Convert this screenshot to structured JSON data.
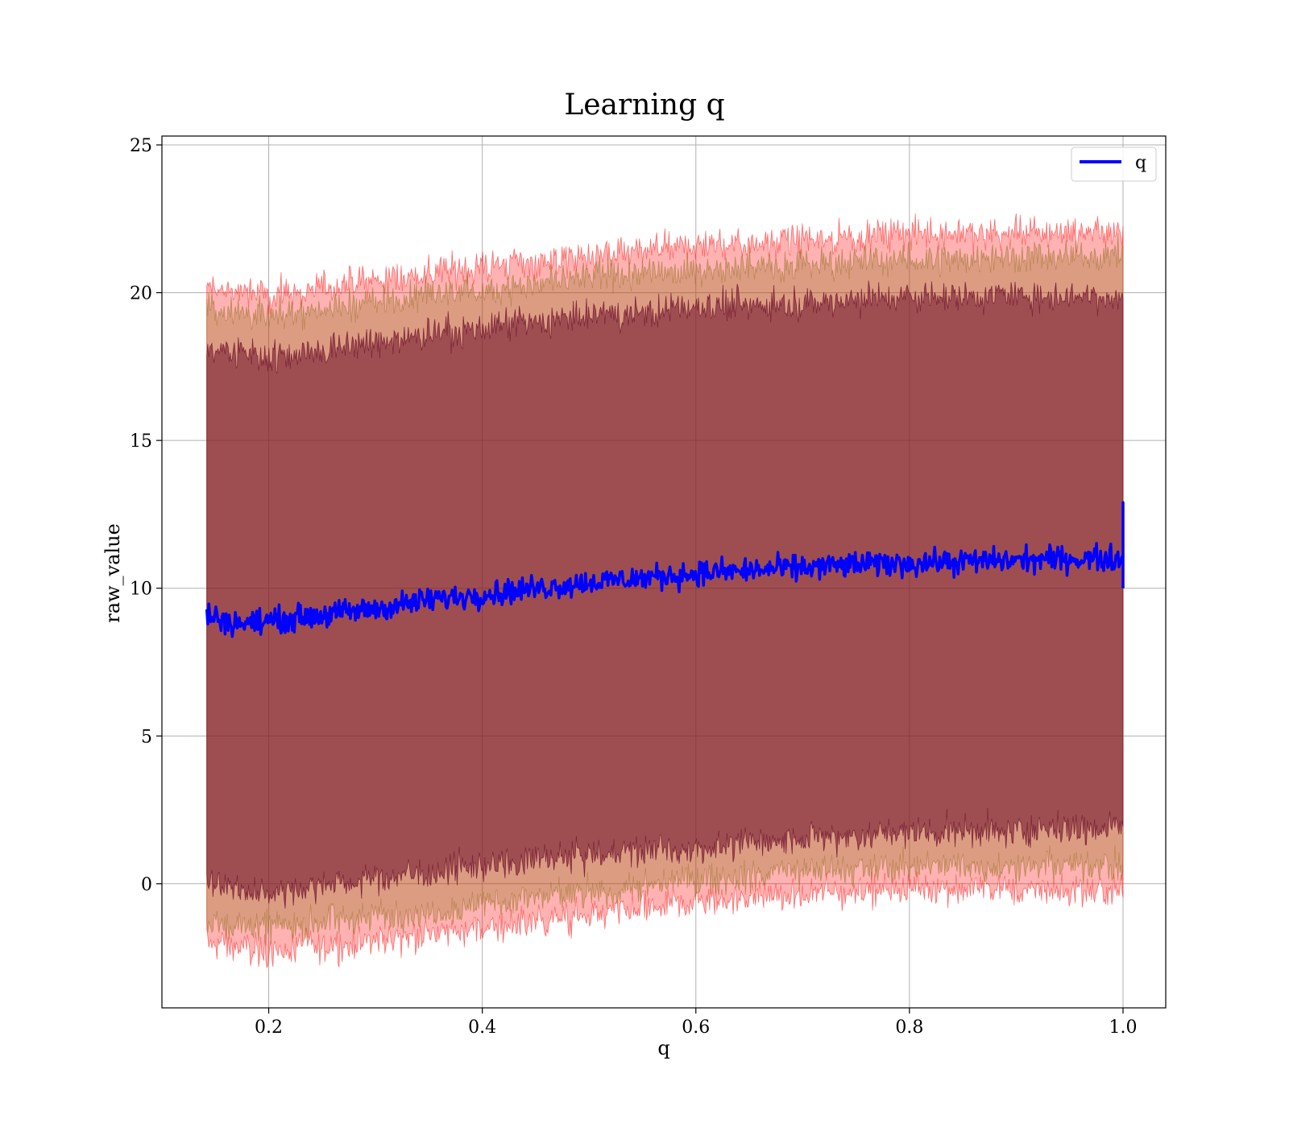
{
  "chart_data": {
    "type": "line",
    "title": "Learning q",
    "xlabel": "q",
    "ylabel": "raw_value",
    "xlim": [
      0.1,
      1.04
    ],
    "ylim": [
      -4.2,
      25.3
    ],
    "x_ticks": [
      0.2,
      0.4,
      0.6,
      0.8,
      1.0
    ],
    "x_tick_labels": [
      "0.2",
      "0.4",
      "0.6",
      "0.8",
      "1.0"
    ],
    "y_ticks": [
      0,
      5,
      10,
      15,
      20,
      25
    ],
    "y_tick_labels": [
      "0",
      "5",
      "10",
      "15",
      "20",
      "25"
    ],
    "grid": true,
    "legend": {
      "position": "top-right",
      "entries": [
        {
          "label": "q",
          "color": "#0000ff"
        }
      ]
    },
    "x_range": [
      0.142,
      1.0
    ],
    "mean_trend": {
      "x": [
        0.142,
        0.17,
        0.2,
        0.25,
        0.3,
        0.35,
        0.4,
        0.45,
        0.5,
        0.55,
        0.6,
        0.65,
        0.7,
        0.75,
        0.8,
        0.85,
        0.9,
        0.95,
        1.0
      ],
      "y": [
        9.1,
        8.8,
        8.9,
        9.1,
        9.3,
        9.6,
        9.8,
        10.0,
        10.2,
        10.35,
        10.5,
        10.6,
        10.7,
        10.8,
        10.85,
        10.9,
        10.95,
        11.0,
        11.0
      ]
    },
    "series": [
      {
        "name": "q",
        "color": "#0000ff",
        "role": "mean line"
      }
    ],
    "bands": [
      {
        "color": "#ff0000",
        "opacity": 0.3,
        "upper": {
          "x": [
            0.142,
            0.2,
            0.3,
            0.4,
            0.5,
            0.6,
            0.7,
            0.8,
            0.9,
            1.0
          ],
          "y": [
            20.2,
            19.9,
            20.4,
            20.9,
            21.2,
            21.6,
            21.8,
            22.0,
            22.0,
            22.1
          ]
        },
        "lower": {
          "x": [
            0.142,
            0.2,
            0.3,
            0.4,
            0.5,
            0.6,
            0.7,
            0.8,
            0.9,
            1.0
          ],
          "y": [
            -2.0,
            -2.3,
            -1.9,
            -1.5,
            -1.1,
            -0.6,
            -0.4,
            -0.1,
            -0.2,
            -0.3
          ]
        }
      },
      {
        "color": "#8b6914",
        "opacity": 0.3,
        "upper": {
          "x": [
            0.142,
            0.2,
            0.3,
            0.4,
            0.5,
            0.6,
            0.7,
            0.8,
            0.9,
            1.0
          ],
          "y": [
            19.5,
            19.2,
            19.7,
            20.1,
            20.5,
            20.8,
            21.0,
            21.1,
            21.2,
            21.3
          ]
        },
        "lower": {
          "x": [
            0.142,
            0.2,
            0.3,
            0.4,
            0.5,
            0.6,
            0.7,
            0.8,
            0.9,
            1.0
          ],
          "y": [
            -1.3,
            -1.5,
            -1.1,
            -0.7,
            -0.3,
            0.1,
            0.4,
            0.6,
            0.6,
            0.6
          ]
        }
      },
      {
        "color": "#6b0f2a",
        "opacity": 0.55,
        "upper": {
          "x": [
            0.142,
            0.2,
            0.3,
            0.4,
            0.5,
            0.6,
            0.7,
            0.8,
            0.9,
            1.0
          ],
          "y": [
            18.1,
            17.8,
            18.3,
            18.8,
            19.2,
            19.5,
            19.7,
            19.9,
            19.9,
            19.9
          ]
        },
        "lower": {
          "x": [
            0.142,
            0.2,
            0.3,
            0.4,
            0.5,
            0.6,
            0.7,
            0.8,
            0.9,
            1.0
          ],
          "y": [
            0.0,
            -0.3,
            0.2,
            0.6,
            1.0,
            1.2,
            1.5,
            1.7,
            1.8,
            1.9
          ]
        }
      }
    ]
  }
}
